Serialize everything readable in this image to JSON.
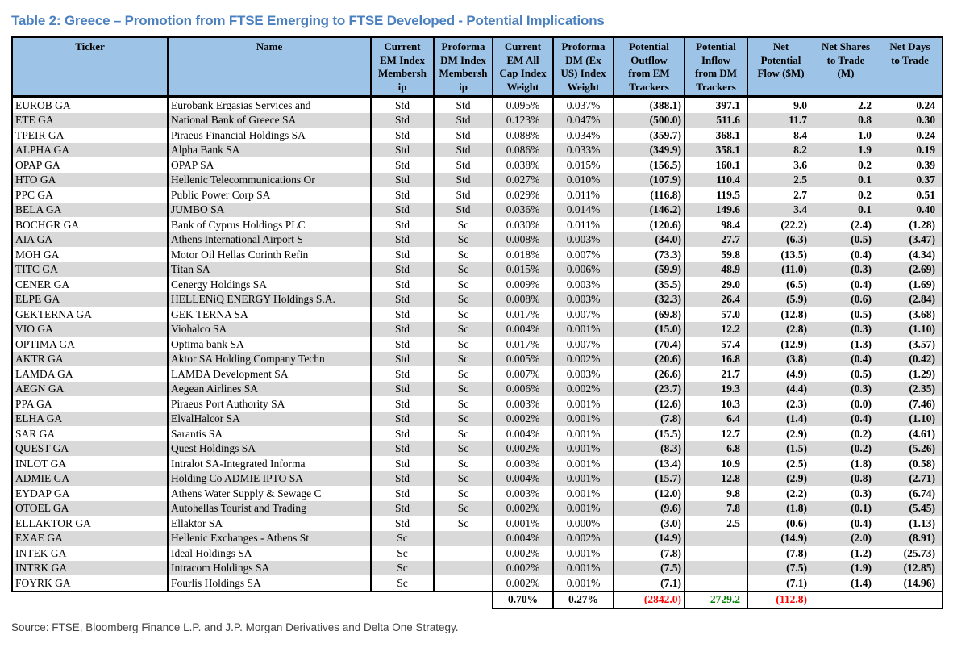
{
  "title": "Table 2: Greece – Promotion from FTSE Emerging to FTSE Developed - Potential Implications",
  "source": "Source: FTSE, Bloomberg Finance L.P. and J.P. Morgan Derivatives and Delta One Strategy.",
  "colors": {
    "title_blue": "#4a80c0",
    "header_bg": "#9dc3e6",
    "row_stripe": "#d9d9d9",
    "negative_red": "#ff0000",
    "positive_green": "#008000",
    "border_black": "#000000"
  },
  "table": {
    "columns": [
      {
        "id": "ticker",
        "label": "Ticker"
      },
      {
        "id": "name",
        "label": "Name"
      },
      {
        "id": "current-em-membership",
        "label": "Current\nEM Index\nMembersh\nip"
      },
      {
        "id": "proforma-dm-membership",
        "label": "Proforma\nDM Index\nMembersh\nip"
      },
      {
        "id": "current-em-weight",
        "label": "Current\nEM All\nCap Index\nWeight"
      },
      {
        "id": "proforma-dm-weight",
        "label": "Proforma\nDM (Ex\nUS) Index\nWeight"
      },
      {
        "id": "potential-outflow",
        "label": "Potential\nOutflow\nfrom EM\nTrackers"
      },
      {
        "id": "potential-inflow",
        "label": "Potential\nInflow\nfrom DM\nTrackers"
      },
      {
        "id": "net-potential-flow",
        "label": "Net\nPotential\nFlow ($M)"
      },
      {
        "id": "net-shares-to-trade",
        "label": "Net Shares\nto Trade\n(M)"
      },
      {
        "id": "net-days-to-trade",
        "label": "Net Days\nto Trade"
      }
    ],
    "rows": [
      [
        "EUROB GA",
        "Eurobank Ergasias Services and",
        "Std",
        "Std",
        "0.095%",
        "0.037%",
        "(388.1)",
        "397.1",
        "9.0",
        "2.2",
        "0.24"
      ],
      [
        "ETE GA",
        "National Bank of Greece SA",
        "Std",
        "Std",
        "0.123%",
        "0.047%",
        "(500.0)",
        "511.6",
        "11.7",
        "0.8",
        "0.30"
      ],
      [
        "TPEIR GA",
        "Piraeus Financial Holdings SA",
        "Std",
        "Std",
        "0.088%",
        "0.034%",
        "(359.7)",
        "368.1",
        "8.4",
        "1.0",
        "0.24"
      ],
      [
        "ALPHA GA",
        "Alpha Bank SA",
        "Std",
        "Std",
        "0.086%",
        "0.033%",
        "(349.9)",
        "358.1",
        "8.2",
        "1.9",
        "0.19"
      ],
      [
        "OPAP GA",
        "OPAP SA",
        "Std",
        "Std",
        "0.038%",
        "0.015%",
        "(156.5)",
        "160.1",
        "3.6",
        "0.2",
        "0.39"
      ],
      [
        "HTO GA",
        "Hellenic Telecommunications Or",
        "Std",
        "Std",
        "0.027%",
        "0.010%",
        "(107.9)",
        "110.4",
        "2.5",
        "0.1",
        "0.37"
      ],
      [
        "PPC GA",
        "Public Power Corp SA",
        "Std",
        "Std",
        "0.029%",
        "0.011%",
        "(116.8)",
        "119.5",
        "2.7",
        "0.2",
        "0.51"
      ],
      [
        "BELA GA",
        "JUMBO SA",
        "Std",
        "Std",
        "0.036%",
        "0.014%",
        "(146.2)",
        "149.6",
        "3.4",
        "0.1",
        "0.40"
      ],
      [
        "BOCHGR GA",
        "Bank of Cyprus Holdings PLC",
        "Std",
        "Sc",
        "0.030%",
        "0.011%",
        "(120.6)",
        "98.4",
        "(22.2)",
        "(2.4)",
        "(1.28)"
      ],
      [
        "AIA GA",
        "Athens International Airport S",
        "Std",
        "Sc",
        "0.008%",
        "0.003%",
        "(34.0)",
        "27.7",
        "(6.3)",
        "(0.5)",
        "(3.47)"
      ],
      [
        "MOH GA",
        "Motor Oil Hellas Corinth Refin",
        "Std",
        "Sc",
        "0.018%",
        "0.007%",
        "(73.3)",
        "59.8",
        "(13.5)",
        "(0.4)",
        "(4.34)"
      ],
      [
        "TITC GA",
        "Titan SA",
        "Std",
        "Sc",
        "0.015%",
        "0.006%",
        "(59.9)",
        "48.9",
        "(11.0)",
        "(0.3)",
        "(2.69)"
      ],
      [
        "CENER GA",
        "Cenergy Holdings SA",
        "Std",
        "Sc",
        "0.009%",
        "0.003%",
        "(35.5)",
        "29.0",
        "(6.5)",
        "(0.4)",
        "(1.69)"
      ],
      [
        "ELPE GA",
        "HELLENiQ ENERGY Holdings S.A.",
        "Std",
        "Sc",
        "0.008%",
        "0.003%",
        "(32.3)",
        "26.4",
        "(5.9)",
        "(0.6)",
        "(2.84)"
      ],
      [
        "GEKTERNA GA",
        "GEK TERNA SA",
        "Std",
        "Sc",
        "0.017%",
        "0.007%",
        "(69.8)",
        "57.0",
        "(12.8)",
        "(0.5)",
        "(3.68)"
      ],
      [
        "VIO GA",
        "Viohalco SA",
        "Std",
        "Sc",
        "0.004%",
        "0.001%",
        "(15.0)",
        "12.2",
        "(2.8)",
        "(0.3)",
        "(1.10)"
      ],
      [
        "OPTIMA GA",
        "Optima bank SA",
        "Std",
        "Sc",
        "0.017%",
        "0.007%",
        "(70.4)",
        "57.4",
        "(12.9)",
        "(1.3)",
        "(3.57)"
      ],
      [
        "AKTR GA",
        "Aktor SA Holding Company Techn",
        "Std",
        "Sc",
        "0.005%",
        "0.002%",
        "(20.6)",
        "16.8",
        "(3.8)",
        "(0.4)",
        "(0.42)"
      ],
      [
        "LAMDA GA",
        "LAMDA Development SA",
        "Std",
        "Sc",
        "0.007%",
        "0.003%",
        "(26.6)",
        "21.7",
        "(4.9)",
        "(0.5)",
        "(1.29)"
      ],
      [
        "AEGN GA",
        "Aegean Airlines SA",
        "Std",
        "Sc",
        "0.006%",
        "0.002%",
        "(23.7)",
        "19.3",
        "(4.4)",
        "(0.3)",
        "(2.35)"
      ],
      [
        "PPA GA",
        "Piraeus Port Authority SA",
        "Std",
        "Sc",
        "0.003%",
        "0.001%",
        "(12.6)",
        "10.3",
        "(2.3)",
        "(0.0)",
        "(7.46)"
      ],
      [
        "ELHA GA",
        "ElvalHalcor SA",
        "Std",
        "Sc",
        "0.002%",
        "0.001%",
        "(7.8)",
        "6.4",
        "(1.4)",
        "(0.4)",
        "(1.10)"
      ],
      [
        "SAR GA",
        "Sarantis SA",
        "Std",
        "Sc",
        "0.004%",
        "0.001%",
        "(15.5)",
        "12.7",
        "(2.9)",
        "(0.2)",
        "(4.61)"
      ],
      [
        "QUEST GA",
        "Quest Holdings SA",
        "Std",
        "Sc",
        "0.002%",
        "0.001%",
        "(8.3)",
        "6.8",
        "(1.5)",
        "(0.2)",
        "(5.26)"
      ],
      [
        "INLOT GA",
        "Intralot SA-Integrated Informa",
        "Std",
        "Sc",
        "0.003%",
        "0.001%",
        "(13.4)",
        "10.9",
        "(2.5)",
        "(1.8)",
        "(0.58)"
      ],
      [
        "ADMIE GA",
        "Holding Co ADMIE IPTO SA",
        "Std",
        "Sc",
        "0.004%",
        "0.001%",
        "(15.7)",
        "12.8",
        "(2.9)",
        "(0.8)",
        "(2.71)"
      ],
      [
        "EYDAP GA",
        "Athens Water Supply & Sewage C",
        "Std",
        "Sc",
        "0.003%",
        "0.001%",
        "(12.0)",
        "9.8",
        "(2.2)",
        "(0.3)",
        "(6.74)"
      ],
      [
        "OTOEL GA",
        "Autohellas Tourist and Trading",
        "Std",
        "Sc",
        "0.002%",
        "0.001%",
        "(9.6)",
        "7.8",
        "(1.8)",
        "(0.1)",
        "(5.45)"
      ],
      [
        "ELLAKTOR GA",
        "Ellaktor SA",
        "Std",
        "Sc",
        "0.001%",
        "0.000%",
        "(3.0)",
        "2.5",
        "(0.6)",
        "(0.4)",
        "(1.13)"
      ],
      [
        "EXAE GA",
        "Hellenic Exchanges - Athens St",
        "Sc",
        "",
        "0.004%",
        "0.002%",
        "(14.9)",
        "",
        "(14.9)",
        "(2.0)",
        "(8.91)"
      ],
      [
        "INTEK GA",
        "Ideal Holdings SA",
        "Sc",
        "",
        "0.002%",
        "0.001%",
        "(7.8)",
        "",
        "(7.8)",
        "(1.2)",
        "(25.73)"
      ],
      [
        "INTRK GA",
        "Intracom Holdings SA",
        "Sc",
        "",
        "0.002%",
        "0.001%",
        "(7.5)",
        "",
        "(7.5)",
        "(1.9)",
        "(12.85)"
      ],
      [
        "FOYRK GA",
        "Fourlis Holdings SA",
        "Sc",
        "",
        "0.002%",
        "0.001%",
        "(7.1)",
        "",
        "(7.1)",
        "(1.4)",
        "(14.96)"
      ]
    ],
    "totals": [
      "0.70%",
      "0.27%",
      "(2842.0)",
      "2729.2",
      "(112.8)",
      "",
      ""
    ]
  }
}
